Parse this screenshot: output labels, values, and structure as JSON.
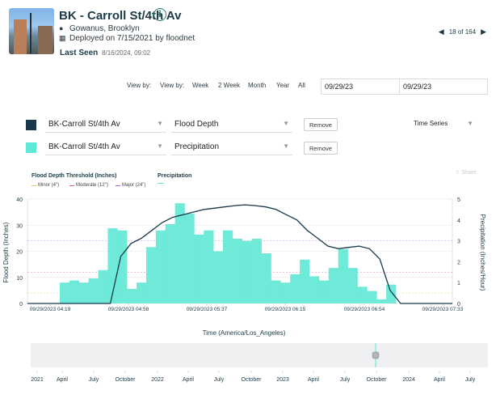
{
  "header": {
    "title": "BK - Carroll St/4th Av",
    "location": "Gowanus, Brooklyn",
    "deployed": "Deployed on 7/15/2021 by floodnet",
    "last_seen_label": "Last Seen",
    "last_seen_value": "8/16/2024, 09:02",
    "pager_text": "18 of 164"
  },
  "controls": {
    "view_by_label": "View by:",
    "view_by_label2": "View by:",
    "ranges": [
      "Week",
      "2 Week",
      "Month",
      "Year",
      "All"
    ],
    "date_from": "09/29/23",
    "date_to": "09/29/23",
    "display_mode": "Time Series",
    "remove_label": "Remove",
    "share_label": "Share"
  },
  "series_rows": [
    {
      "sensor": "BK-Carroll St/4th Av",
      "metric": "Flood Depth",
      "color": "#16384a"
    },
    {
      "sensor": "BK-Carroll St/4th Av",
      "metric": "Precipitation",
      "color": "#5ee8d6"
    }
  ],
  "legend": {
    "threshold_title": "Flood Depth Threshold (Inches)",
    "thresholds": [
      {
        "label": "Minor (4\")",
        "color": "#e8c35a"
      },
      {
        "label": "Moderate (12\")",
        "color": "#e05a8a"
      },
      {
        "label": "Major (24\")",
        "color": "#a55ad6"
      }
    ],
    "precip_title": "Precipitation"
  },
  "chart_data": {
    "type": "bar",
    "ylabel": "Flood Depth (Inches)",
    "y2label": "Precipitation (Inches/Hour)",
    "xlabel": "Time (America/Los_Angeles)",
    "ylim": [
      0,
      40
    ],
    "y2lim": [
      0,
      5
    ],
    "y_ticks": [
      0,
      10,
      20,
      30,
      40
    ],
    "y2_ticks": [
      0,
      1,
      2,
      3,
      4,
      5
    ],
    "x_ticks": [
      "09/29/2023 04:19",
      "09/29/2023 04:58",
      "09/29/2023 05:37",
      "09/29/2023 06:15",
      "09/29/2023 06:54",
      "09/29/2023 07:33"
    ],
    "precipitation": [
      1.0,
      1.1,
      1.0,
      1.2,
      1.6,
      3.6,
      3.5,
      0.7,
      1.0,
      2.7,
      3.5,
      3.8,
      4.8,
      4.3,
      3.3,
      3.5,
      2.5,
      3.5,
      3.1,
      3.0,
      3.1,
      2.4,
      1.1,
      1.0,
      1.4,
      2.1,
      1.3,
      1.1,
      1.7,
      2.6,
      1.7,
      0.8,
      0.6,
      0.2,
      0.9
    ],
    "flood_depth": [
      0,
      0,
      0,
      0,
      0,
      0,
      0,
      0,
      0,
      18,
      23,
      25,
      28,
      31,
      33,
      34,
      35,
      36,
      36.5,
      37,
      37.5,
      37.8,
      37.5,
      37,
      36,
      34,
      32,
      28,
      25,
      22,
      21,
      21.5,
      22,
      21,
      17,
      5,
      0,
      0,
      0,
      0,
      0,
      0
    ],
    "timeline_ticks": [
      "2021",
      "April",
      "July",
      "October",
      "2022",
      "April",
      "July",
      "October",
      "2023",
      "April",
      "July",
      "October",
      "2024",
      "April",
      "July"
    ]
  }
}
